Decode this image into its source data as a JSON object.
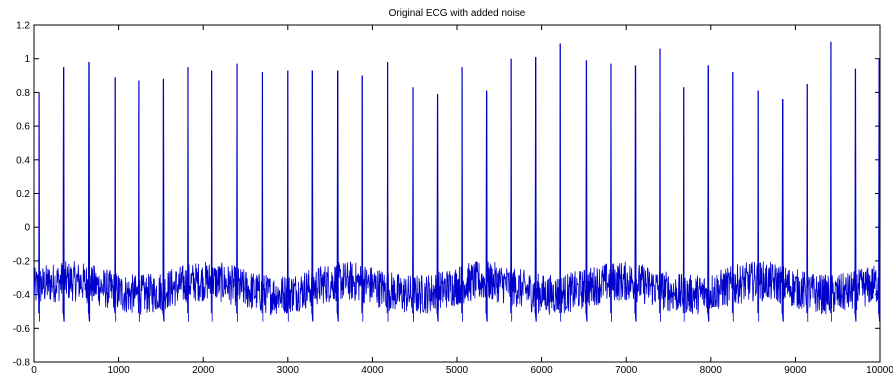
{
  "chart_data": {
    "type": "line",
    "title": "Original ECG with added noise",
    "xlabel": "",
    "ylabel": "",
    "xlim": [
      0,
      10000
    ],
    "ylim": [
      -0.8,
      1.2
    ],
    "grid": false,
    "legend": "none",
    "x_ticks": [
      0,
      1000,
      2000,
      3000,
      4000,
      5000,
      6000,
      7000,
      8000,
      9000,
      10000
    ],
    "x_tick_labels": [
      "0",
      "1000",
      "2000",
      "3000",
      "4000",
      "5000",
      "6000",
      "7000",
      "8000",
      "9000",
      "10000"
    ],
    "y_ticks": [
      -0.8,
      -0.6,
      -0.4,
      -0.2,
      0,
      0.2,
      0.4,
      0.6,
      0.8,
      1,
      1.2
    ],
    "y_tick_labels": [
      "-0.8",
      "-0.6",
      "-0.4",
      "-0.2",
      "0",
      "0.2",
      "0.4",
      "0.6",
      "0.8",
      "1",
      "1.2"
    ],
    "line_color": "#0000cc",
    "series": [
      {
        "baseline": -0.36,
        "noise_amplitude": 0.12,
        "peaks": [
          {
            "x": 60,
            "y": 0.8
          },
          {
            "x": 350,
            "y": 0.95
          },
          {
            "x": 650,
            "y": 0.98
          },
          {
            "x": 960,
            "y": 0.89
          },
          {
            "x": 1240,
            "y": 0.87
          },
          {
            "x": 1530,
            "y": 0.88
          },
          {
            "x": 1820,
            "y": 0.95
          },
          {
            "x": 2100,
            "y": 0.93
          },
          {
            "x": 2400,
            "y": 0.97
          },
          {
            "x": 2700,
            "y": 0.92
          },
          {
            "x": 3000,
            "y": 0.93
          },
          {
            "x": 3290,
            "y": 0.93
          },
          {
            "x": 3590,
            "y": 0.93
          },
          {
            "x": 3880,
            "y": 0.9
          },
          {
            "x": 4180,
            "y": 0.98
          },
          {
            "x": 4480,
            "y": 0.83
          },
          {
            "x": 4770,
            "y": 0.79
          },
          {
            "x": 5060,
            "y": 0.95
          },
          {
            "x": 5350,
            "y": 0.81
          },
          {
            "x": 5640,
            "y": 1.0
          },
          {
            "x": 5930,
            "y": 1.01
          },
          {
            "x": 6220,
            "y": 1.09
          },
          {
            "x": 6530,
            "y": 0.99
          },
          {
            "x": 6820,
            "y": 0.97
          },
          {
            "x": 7110,
            "y": 0.96
          },
          {
            "x": 7400,
            "y": 1.06
          },
          {
            "x": 7680,
            "y": 0.83
          },
          {
            "x": 7970,
            "y": 0.96
          },
          {
            "x": 8260,
            "y": 0.92
          },
          {
            "x": 8560,
            "y": 0.81
          },
          {
            "x": 8850,
            "y": 0.76
          },
          {
            "x": 9140,
            "y": 0.85
          },
          {
            "x": 9420,
            "y": 1.1
          },
          {
            "x": 9710,
            "y": 0.94
          },
          {
            "x": 9990,
            "y": 1.0
          }
        ]
      }
    ]
  }
}
